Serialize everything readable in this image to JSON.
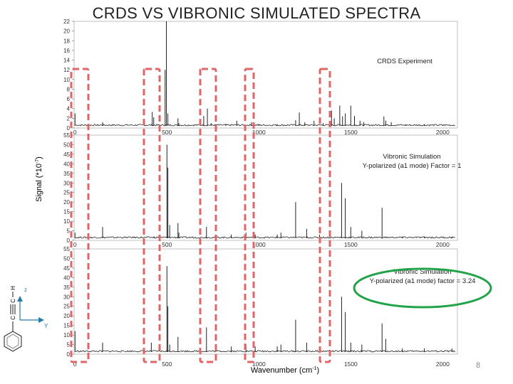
{
  "slide": {
    "title": "CRDS VS VIBRONIC SIMULATED SPECTRA",
    "page_number": "8"
  },
  "y_axis_label": {
    "main": "Signal (*10",
    "exp": "-7",
    "close": ")"
  },
  "x_axis_label": {
    "main": "Wavenumber (cm",
    "exp": "-1",
    "close": ")"
  },
  "x_ticks": [
    "0",
    "500",
    "1000",
    "1500",
    "2000"
  ],
  "molecule": {
    "axis_z": "z",
    "axis_y": "Y",
    "atom_c1": "C",
    "atom_c2": "C",
    "atom_h": "H"
  },
  "colors": {
    "highlight_box": "#e06666",
    "annotation_ellipse": "#22a34a",
    "trace": "#222222"
  },
  "chart_data": [
    {
      "type": "line",
      "title": "",
      "annotation": [
        "CRDS Experiment"
      ],
      "xlabel": "",
      "ylabel": "",
      "xlim": [
        -5,
        2080
      ],
      "ylim": [
        0,
        22
      ],
      "y_ticks": [
        "0",
        "2",
        "4",
        "6",
        "8",
        "10",
        "12",
        "14",
        "16",
        "18",
        "20",
        "22"
      ],
      "peaks": [
        [
          0,
          3.0
        ],
        [
          150,
          1.2
        ],
        [
          420,
          3.3
        ],
        [
          428,
          2.2
        ],
        [
          490,
          12.0
        ],
        [
          497,
          22.0
        ],
        [
          505,
          3.0
        ],
        [
          560,
          2.0
        ],
        [
          565,
          1.0
        ],
        [
          700,
          2.5
        ],
        [
          720,
          4.0
        ],
        [
          740,
          1.0
        ],
        [
          820,
          0.8
        ],
        [
          880,
          1.5
        ],
        [
          960,
          1.2
        ],
        [
          1000,
          0.8
        ],
        [
          1100,
          0.8
        ],
        [
          1200,
          1.6
        ],
        [
          1220,
          3.2
        ],
        [
          1250,
          1.2
        ],
        [
          1300,
          1.5
        ],
        [
          1350,
          1.0
        ],
        [
          1395,
          3.6
        ],
        [
          1410,
          2.0
        ],
        [
          1440,
          4.6
        ],
        [
          1455,
          2.4
        ],
        [
          1470,
          3.0
        ],
        [
          1500,
          4.6
        ],
        [
          1520,
          2.5
        ],
        [
          1550,
          1.5
        ],
        [
          1570,
          1.2
        ],
        [
          1680,
          2.4
        ],
        [
          1690,
          1.5
        ],
        [
          1720,
          1.2
        ],
        [
          1800,
          0.7
        ],
        [
          1900,
          0.8
        ],
        [
          2000,
          0.6
        ]
      ]
    },
    {
      "type": "line",
      "title": "",
      "annotation": [
        "Vibronic Simulation",
        "Y-polarized (a1 mode) Factor = 1"
      ],
      "xlabel": "",
      "ylabel": "",
      "xlim": [
        -5,
        2080
      ],
      "ylim": [
        0,
        55
      ],
      "y_ticks": [
        "0",
        "5",
        "10",
        "15",
        "20",
        "25",
        "30",
        "35",
        "40",
        "45",
        "50",
        "55"
      ],
      "peaks": [
        [
          0,
          4
        ],
        [
          150,
          7
        ],
        [
          430,
          2
        ],
        [
          500,
          50
        ],
        [
          505,
          38
        ],
        [
          515,
          8
        ],
        [
          560,
          9
        ],
        [
          565,
          4
        ],
        [
          715,
          7
        ],
        [
          850,
          3
        ],
        [
          930,
          4
        ],
        [
          980,
          3
        ],
        [
          1100,
          3
        ],
        [
          1120,
          4
        ],
        [
          1200,
          20
        ],
        [
          1260,
          6
        ],
        [
          1330,
          3
        ],
        [
          1450,
          30
        ],
        [
          1470,
          22
        ],
        [
          1500,
          7
        ],
        [
          1560,
          5
        ],
        [
          1670,
          17
        ],
        [
          1780,
          2
        ],
        [
          1900,
          2
        ],
        [
          2050,
          2
        ]
      ]
    },
    {
      "type": "line",
      "title": "",
      "annotation": [
        "Vibronic Simulation",
        "Y-polarized (a1 mode) factor = 3.24"
      ],
      "xlabel": "",
      "ylabel": "",
      "xlim": [
        -5,
        2080
      ],
      "ylim": [
        0,
        55
      ],
      "y_ticks": [
        "0",
        "5",
        "10",
        "15",
        "20",
        "25",
        "30",
        "35",
        "40",
        "45",
        "50",
        "55"
      ],
      "peaks": [
        [
          0,
          12
        ],
        [
          150,
          6
        ],
        [
          415,
          6
        ],
        [
          500,
          46
        ],
        [
          505,
          25
        ],
        [
          515,
          5
        ],
        [
          560,
          9
        ],
        [
          715,
          14
        ],
        [
          850,
          4
        ],
        [
          930,
          5
        ],
        [
          980,
          4
        ],
        [
          1100,
          4
        ],
        [
          1120,
          5
        ],
        [
          1200,
          18
        ],
        [
          1260,
          6
        ],
        [
          1330,
          4
        ],
        [
          1450,
          30
        ],
        [
          1470,
          22
        ],
        [
          1500,
          6
        ],
        [
          1560,
          5
        ],
        [
          1670,
          16
        ],
        [
          1690,
          8
        ],
        [
          1780,
          3
        ],
        [
          1900,
          3
        ],
        [
          2050,
          3
        ]
      ]
    }
  ]
}
